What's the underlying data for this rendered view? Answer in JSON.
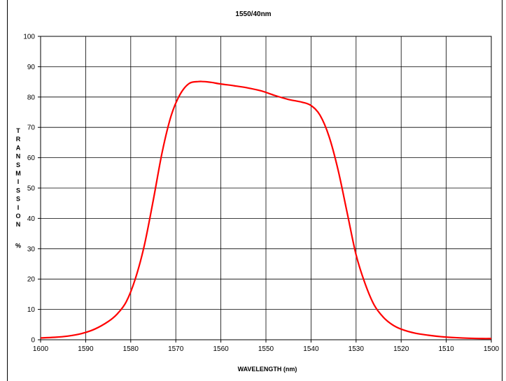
{
  "chart_data": {
    "type": "line",
    "title": "1550/40nm",
    "xlabel": "WAVELENGTH (nm)",
    "ylabel": "TRANSMISSION %",
    "xlim": [
      1600,
      1500
    ],
    "ylim": [
      0,
      100
    ],
    "x_reversed": true,
    "grid": true,
    "x_ticks": [
      "1600",
      "1590",
      "1580",
      "1570",
      "1560",
      "1550",
      "1540",
      "1530",
      "1520",
      "1510",
      "1500"
    ],
    "y_ticks": [
      "0",
      "10",
      "20",
      "30",
      "40",
      "50",
      "60",
      "70",
      "80",
      "90",
      "100"
    ],
    "series_color": "#ff0000",
    "series": [
      {
        "x": [
          1600,
          1597,
          1594,
          1591,
          1588,
          1585,
          1583,
          1581,
          1579,
          1577,
          1575,
          1573,
          1571,
          1569,
          1567,
          1565,
          1564,
          1563,
          1562,
          1560,
          1557,
          1554,
          1551,
          1548,
          1545,
          1542,
          1540,
          1538,
          1536,
          1534,
          1532,
          1530,
          1528,
          1526,
          1524,
          1522,
          1520,
          1517,
          1514,
          1511,
          1508,
          1505,
          1502,
          1500
        ],
        "y": [
          0.6,
          0.8,
          1.2,
          2.0,
          3.5,
          6.0,
          8.5,
          12.5,
          20.0,
          31.0,
          46.0,
          62.0,
          74.0,
          81.0,
          84.5,
          85.1,
          85.1,
          85.0,
          84.8,
          84.3,
          83.7,
          83.0,
          82.0,
          80.5,
          79.2,
          78.3,
          77.2,
          74.0,
          67.0,
          56.0,
          42.0,
          28.0,
          18.5,
          11.5,
          7.5,
          5.0,
          3.5,
          2.2,
          1.5,
          1.0,
          0.7,
          0.5,
          0.4,
          0.4
        ]
      }
    ]
  }
}
